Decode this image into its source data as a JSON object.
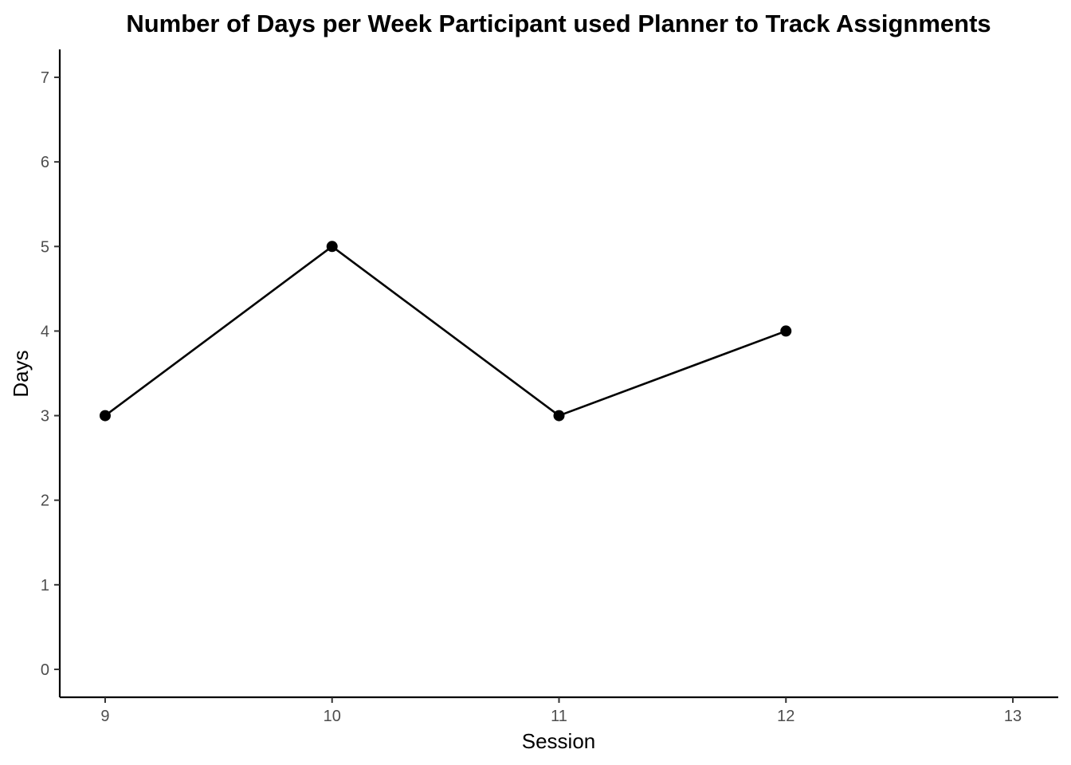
{
  "chart_data": {
    "type": "line",
    "title": "Number of Days per Week Participant used Planner to Track Assignments",
    "xlabel": "Session",
    "ylabel": "Days",
    "x": [
      9,
      10,
      11,
      12
    ],
    "y": [
      3,
      5,
      3,
      4
    ],
    "xlim": [
      8.8,
      13.2
    ],
    "ylim": [
      -0.33,
      7.33
    ],
    "x_ticks": [
      9,
      10,
      11,
      12,
      13
    ],
    "y_ticks": [
      0,
      1,
      2,
      3,
      4,
      5,
      6,
      7
    ],
    "grid": false,
    "legend": "none",
    "line_color": "#000000",
    "point_color": "#000000"
  }
}
